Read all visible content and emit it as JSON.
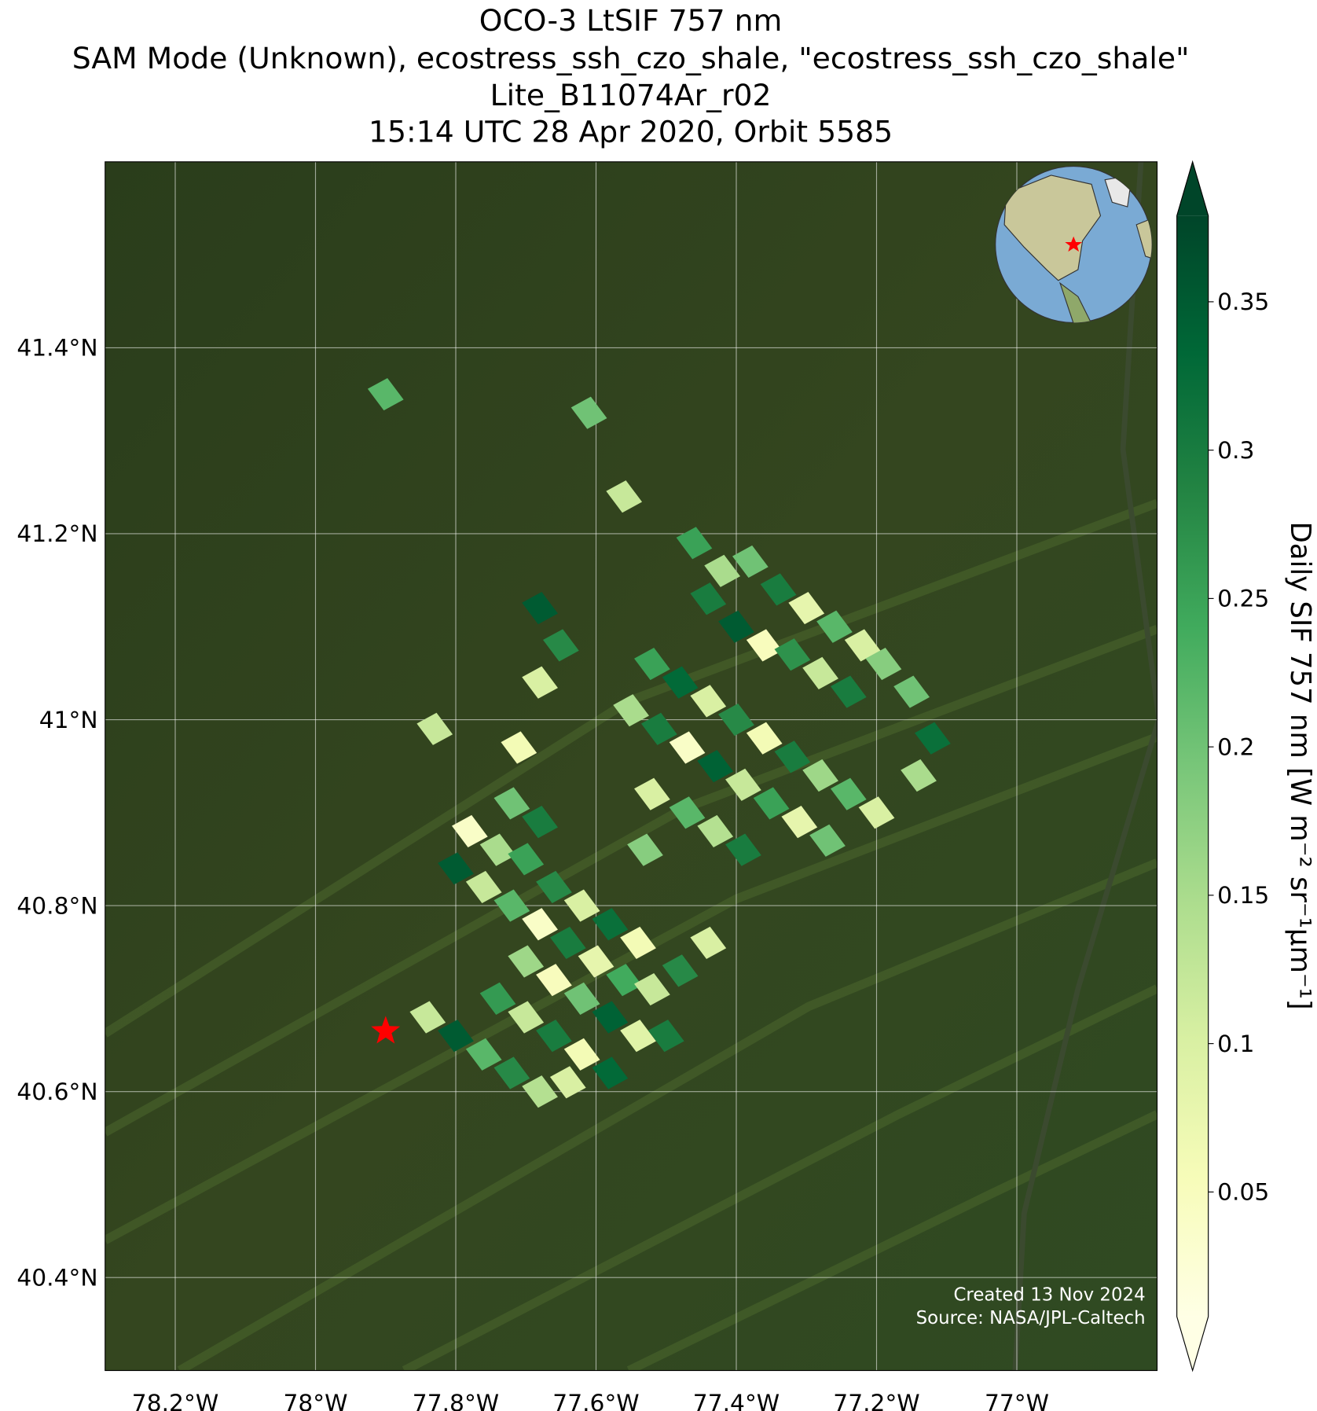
{
  "chart_data": {
    "type": "map",
    "title": [
      "OCO-3 LtSIF 757 nm",
      "SAM Mode (Unknown), ecostress_ssh_czo_shale, \"ecostress_ssh_czo_shale\"",
      "Lite_B11074Ar_r02",
      "15:14 UTC 28 Apr 2020, Orbit 5585"
    ],
    "xlim": [
      -78.3,
      -76.8
    ],
    "ylim": [
      40.3,
      41.6
    ],
    "xticks": [
      {
        "value": -78.2,
        "label": "78.2°W"
      },
      {
        "value": -78,
        "label": "78°W"
      },
      {
        "value": -77.8,
        "label": "77.8°W"
      },
      {
        "value": -77.6,
        "label": "77.6°W"
      },
      {
        "value": -77.4,
        "label": "77.4°W"
      },
      {
        "value": -77.2,
        "label": "77.2°W"
      },
      {
        "value": -77,
        "label": "77°W"
      }
    ],
    "yticks": [
      {
        "value": 40.4,
        "label": "40.4°N"
      },
      {
        "value": 40.6,
        "label": "40.6°N"
      },
      {
        "value": 40.8,
        "label": "40.8°N"
      },
      {
        "value": 41,
        "label": "41°N"
      },
      {
        "value": 41.2,
        "label": "41.2°N"
      },
      {
        "value": 41.4,
        "label": "41.4°N"
      }
    ],
    "grid": true,
    "colormap": "YlGn",
    "clim": [
      0.008,
      0.379
    ],
    "cticks": [
      0.05,
      0.1,
      0.15,
      0.2,
      0.25,
      0.3,
      0.35
    ],
    "clabel": "Daily SIF 757 nm [W m⁻² sr⁻¹μm⁻¹]",
    "target": {
      "lon": -77.9,
      "lat": 40.665,
      "color": "#ff0000"
    },
    "soundings": {
      "lon": [
        -77.9,
        -77.61,
        -77.56,
        -77.44,
        -77.46,
        -77.42,
        -77.38,
        -77.34,
        -77.3,
        -77.26,
        -77.22,
        -77.19,
        -77.4,
        -77.36,
        -77.32,
        -77.28,
        -77.24,
        -77.15,
        -77.12,
        -77.14,
        -77.52,
        -77.48,
        -77.44,
        -77.4,
        -77.36,
        -77.32,
        -77.28,
        -77.24,
        -77.2,
        -77.55,
        -77.51,
        -77.47,
        -77.43,
        -77.39,
        -77.35,
        -77.31,
        -77.27,
        -77.52,
        -77.47,
        -77.43,
        -77.39,
        -77.68,
        -77.65,
        -77.68,
        -77.83,
        -77.71,
        -77.78,
        -77.72,
        -77.68,
        -77.74,
        -77.7,
        -77.8,
        -77.76,
        -77.72,
        -77.66,
        -77.62,
        -77.58,
        -77.54,
        -77.68,
        -77.64,
        -77.6,
        -77.56,
        -77.52,
        -77.48,
        -77.44,
        -77.7,
        -77.66,
        -77.62,
        -77.58,
        -77.54,
        -77.5,
        -77.74,
        -77.7,
        -77.66,
        -77.62,
        -77.58,
        -77.8,
        -77.76,
        -77.72,
        -77.68,
        -77.64,
        -77.84,
        -77.53
      ],
      "lat": [
        41.35,
        41.33,
        41.24,
        41.13,
        41.19,
        41.16,
        41.17,
        41.14,
        41.12,
        41.1,
        41.08,
        41.06,
        41.1,
        41.08,
        41.07,
        41.05,
        41.03,
        41.03,
        40.98,
        40.94,
        41.06,
        41.04,
        41.02,
        41.0,
        40.98,
        40.96,
        40.94,
        40.92,
        40.9,
        41.01,
        40.99,
        40.97,
        40.95,
        40.93,
        40.91,
        40.89,
        40.87,
        40.92,
        40.9,
        40.88,
        40.86,
        41.12,
        41.08,
        41.04,
        40.99,
        40.97,
        40.88,
        40.91,
        40.89,
        40.86,
        40.85,
        40.84,
        40.82,
        40.8,
        40.82,
        40.8,
        40.78,
        40.76,
        40.78,
        40.76,
        40.74,
        40.72,
        40.71,
        40.73,
        40.76,
        40.74,
        40.72,
        40.7,
        40.68,
        40.66,
        40.66,
        40.7,
        40.68,
        40.66,
        40.64,
        40.62,
        40.66,
        40.64,
        40.62,
        40.6,
        40.61,
        40.68,
        40.86
      ],
      "sif": [
        0.22,
        0.2,
        0.12,
        0.3,
        0.25,
        0.15,
        0.2,
        0.3,
        0.08,
        0.22,
        0.1,
        0.18,
        0.35,
        0.05,
        0.27,
        0.12,
        0.3,
        0.2,
        0.32,
        0.15,
        0.25,
        0.33,
        0.1,
        0.28,
        0.06,
        0.3,
        0.16,
        0.22,
        0.1,
        0.15,
        0.3,
        0.04,
        0.34,
        0.12,
        0.25,
        0.08,
        0.2,
        0.1,
        0.22,
        0.14,
        0.3,
        0.35,
        0.28,
        0.1,
        0.12,
        0.06,
        0.04,
        0.2,
        0.3,
        0.15,
        0.25,
        0.35,
        0.12,
        0.22,
        0.28,
        0.1,
        0.32,
        0.06,
        0.04,
        0.3,
        0.08,
        0.24,
        0.12,
        0.28,
        0.1,
        0.16,
        0.05,
        0.2,
        0.34,
        0.09,
        0.3,
        0.26,
        0.12,
        0.3,
        0.06,
        0.33,
        0.35,
        0.22,
        0.28,
        0.14,
        0.1,
        0.12,
        0.18
      ]
    },
    "annotations": [
      "Created 13 Nov 2024",
      "Source: NASA/JPL-Caltech"
    ]
  }
}
